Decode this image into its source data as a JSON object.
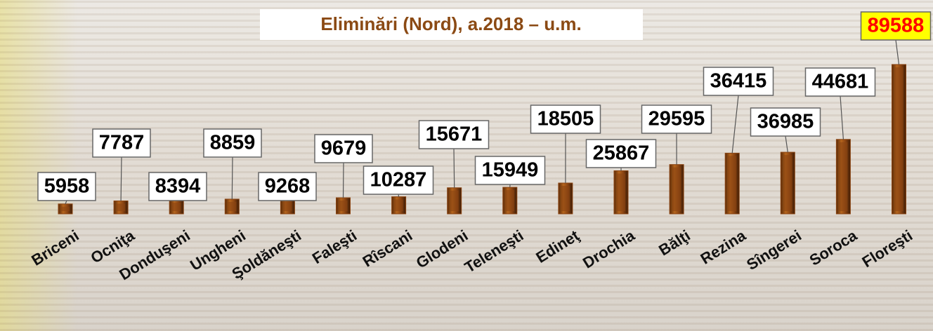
{
  "chart_data": {
    "type": "bar",
    "title": "Eliminări (Nord), a.2018 – u.m.",
    "categories": [
      "Briceni",
      "Ocniţa",
      "Donduşeni",
      "Ungheni",
      "Şoldăneşti",
      "Faleşti",
      "Rîscani",
      "Glodeni",
      "Teleneşti",
      "Edineţ",
      "Drochia",
      "Bălţi",
      "Rezina",
      "Sîngerei",
      "Soroca",
      "Floreşti"
    ],
    "values": [
      5958,
      7787,
      8394,
      8859,
      9268,
      9679,
      10287,
      15671,
      15949,
      18505,
      25867,
      29595,
      36415,
      36985,
      44681,
      89588
    ],
    "color": "#8b4513"
  }
}
